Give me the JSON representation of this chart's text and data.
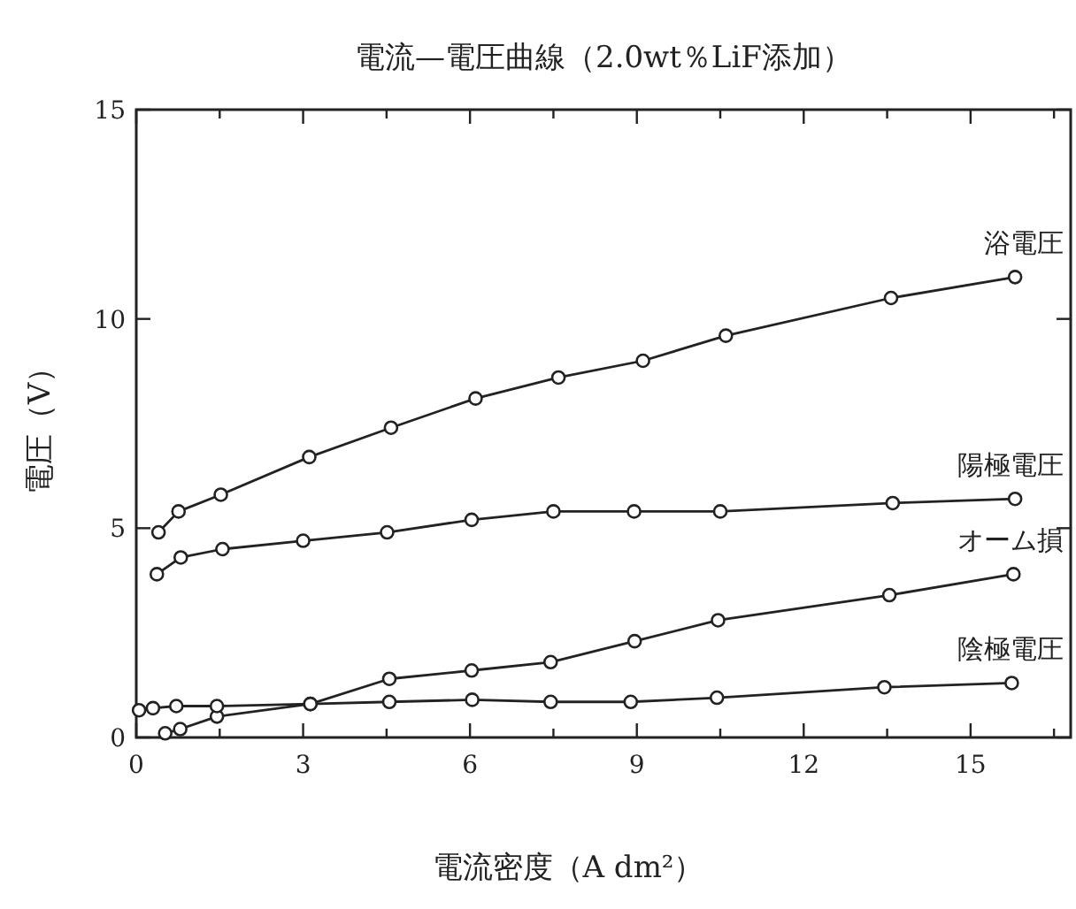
{
  "chart_data": {
    "type": "line",
    "title": "電流—電圧曲線（2.0wt％LiF添加）",
    "xlabel": "電流密度（A dm²）",
    "ylabel": "電圧（V）",
    "xlim": [
      0,
      16.8
    ],
    "ylim": [
      0,
      15
    ],
    "xticks": [
      0,
      {
        "value": 1.5,
        "label": null
      },
      3,
      {
        "value": 4.5,
        "label": null
      },
      6,
      {
        "value": 7.5,
        "label": null
      },
      9,
      {
        "value": 10.5,
        "label": null
      },
      12,
      {
        "value": 13.5,
        "label": null
      },
      15,
      {
        "value": 16.5,
        "label": null
      }
    ],
    "yticks": [
      0,
      5,
      10,
      15
    ],
    "marker": "circle",
    "line_style": "solid",
    "grid": false,
    "series": [
      {
        "name": "浴電圧",
        "color": "#222222",
        "x": [
          0.4,
          0.76,
          1.52,
          3.11,
          4.58,
          6.1,
          7.59,
          9.11,
          10.6,
          13.57,
          15.8
        ],
        "values": [
          4.9,
          5.4,
          5.8,
          6.7,
          7.4,
          8.1,
          8.6,
          9.0,
          9.6,
          10.5,
          11.0
        ]
      },
      {
        "name": "陽極電圧",
        "color": "#222222",
        "x": [
          0.37,
          0.8,
          1.55,
          3.0,
          4.51,
          6.03,
          7.5,
          8.95,
          10.5,
          13.6,
          15.8
        ],
        "values": [
          3.9,
          4.3,
          4.5,
          4.7,
          4.9,
          5.2,
          5.4,
          5.4,
          5.4,
          5.6,
          5.7
        ]
      },
      {
        "name": "オーム損",
        "color": "#222222",
        "x": [
          0.52,
          0.79,
          1.45,
          3.13,
          4.55,
          6.03,
          7.45,
          8.96,
          10.46,
          13.54,
          15.77
        ],
        "values": [
          0.1,
          0.2,
          0.5,
          0.8,
          1.4,
          1.6,
          1.8,
          2.3,
          2.8,
          3.4,
          3.9
        ]
      },
      {
        "name": "陰極電圧",
        "color": "#222222",
        "x": [
          0.05,
          0.3,
          0.72,
          1.45,
          3.13,
          4.55,
          6.04,
          7.45,
          8.89,
          10.44,
          13.45,
          15.74
        ],
        "values": [
          0.65,
          0.7,
          0.75,
          0.75,
          0.8,
          0.85,
          0.9,
          0.85,
          0.85,
          0.95,
          1.2,
          1.3
        ]
      }
    ]
  }
}
